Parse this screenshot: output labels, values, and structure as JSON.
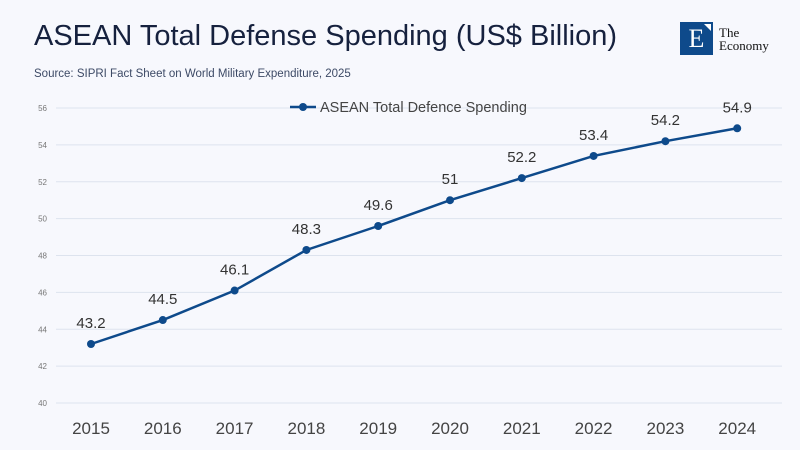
{
  "header": {
    "title": "ASEAN Total Defense Spending (US$ Billion)",
    "source": "Source: SIPRI Fact Sheet on World Military Expenditure, 2025"
  },
  "logo": {
    "letter": "E",
    "line1": "The",
    "line2": "Economy"
  },
  "colors": {
    "line": "#0e4a8b",
    "grid": "#dde3ee",
    "tick": "#777",
    "xtick": "#444",
    "label": "#333"
  },
  "chart_data": {
    "type": "line",
    "title": "ASEAN Total Defense Spending (US$ Billion)",
    "categories": [
      "2015",
      "2016",
      "2017",
      "2018",
      "2019",
      "2020",
      "2021",
      "2022",
      "2023",
      "2024"
    ],
    "series": [
      {
        "name": "ASEAN Total Defence Spending",
        "values": [
          43.2,
          44.5,
          46.1,
          48.3,
          49.6,
          51,
          52.2,
          53.4,
          54.2,
          54.9
        ],
        "labels": [
          "43.2",
          "44.5",
          "46.1",
          "48.3",
          "49.6",
          "51",
          "52.2",
          "53.4",
          "54.2",
          "54.9"
        ]
      }
    ],
    "yticks": [
      "40",
      "42",
      "44",
      "46",
      "48",
      "50",
      "52",
      "54",
      "56"
    ],
    "ylim": [
      40,
      56
    ],
    "grid": true,
    "legend": "top-center",
    "xlabel": "",
    "ylabel": ""
  }
}
